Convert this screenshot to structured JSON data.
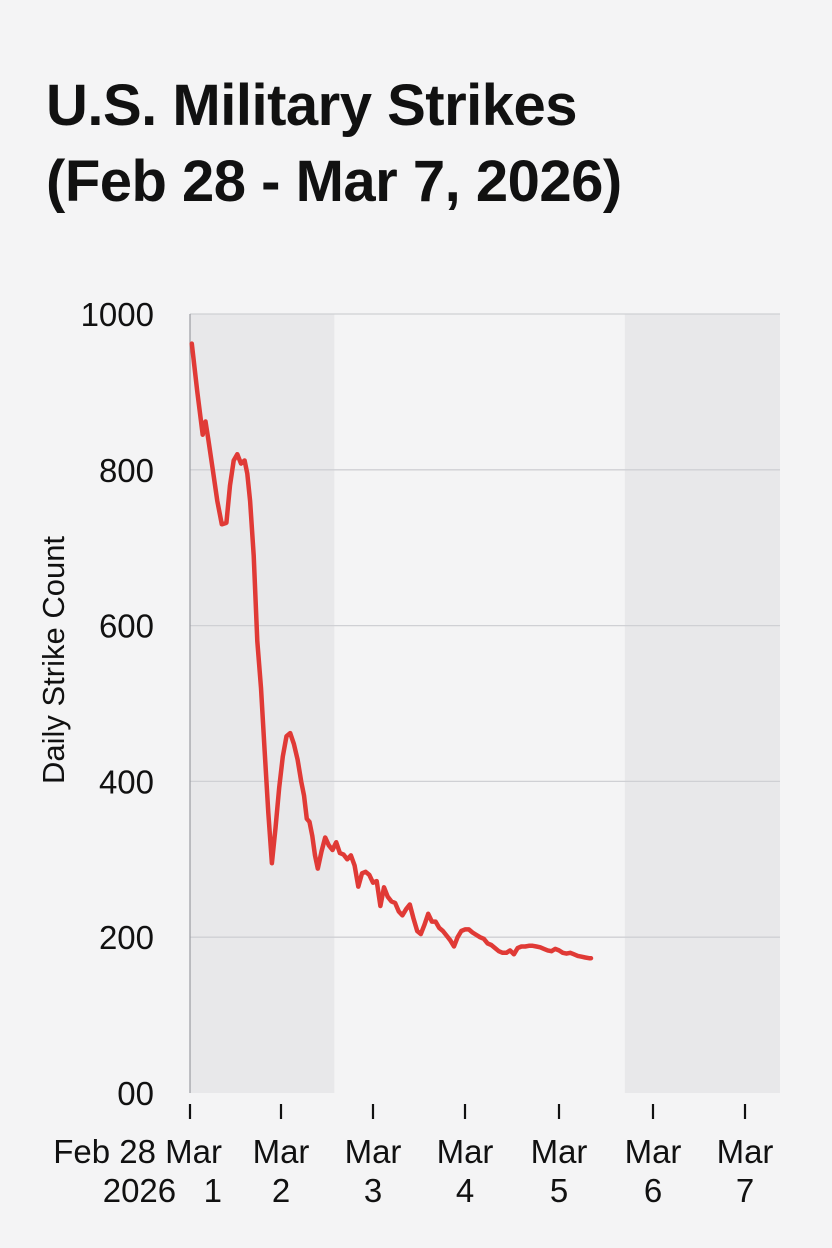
{
  "chart_data": {
    "type": "line",
    "title_lines": [
      "U.S. Military Strikes",
      "(Feb 28 - Mar 7, 2026)"
    ],
    "xlabel": "",
    "ylabel": "Daily Strike Count",
    "ylim": [
      0,
      1000
    ],
    "yticks": [
      {
        "value": 1000,
        "label": "1000"
      },
      {
        "value": 800,
        "label": "800"
      },
      {
        "value": 600,
        "label": "600"
      },
      {
        "value": 400,
        "label": "400"
      },
      {
        "value": 200,
        "label": "200"
      },
      {
        "value": 0,
        "label": "00"
      }
    ],
    "xticks": [
      {
        "day": 0,
        "lines": [
          "Feb 28 Mar",
          "2026   1"
        ]
      },
      {
        "day": 1,
        "lines": [
          "Mar",
          "2"
        ]
      },
      {
        "day": 2,
        "lines": [
          "Mar",
          "3"
        ]
      },
      {
        "day": 3,
        "lines": [
          "Mar",
          "4"
        ]
      },
      {
        "day": 4,
        "lines": [
          "Mar",
          "5"
        ]
      },
      {
        "day": 5,
        "lines": [
          "Mar",
          "6"
        ]
      },
      {
        "day": 6,
        "lines": [
          "Mar",
          "7"
        ]
      }
    ],
    "xlim_days": [
      0,
      6.38
    ],
    "shaded_bands_days": [
      [
        0,
        1.58
      ],
      [
        4.7,
        6.38
      ]
    ],
    "grid": "horizontal",
    "series": [
      {
        "color": "#e03a36",
        "points": [
          [
            0.02,
            962
          ],
          [
            0.08,
            900
          ],
          [
            0.14,
            845
          ],
          [
            0.17,
            862
          ],
          [
            0.2,
            840
          ],
          [
            0.25,
            800
          ],
          [
            0.3,
            760
          ],
          [
            0.35,
            730
          ],
          [
            0.4,
            732
          ],
          [
            0.44,
            780
          ],
          [
            0.48,
            812
          ],
          [
            0.52,
            820
          ],
          [
            0.56,
            808
          ],
          [
            0.6,
            812
          ],
          [
            0.63,
            795
          ],
          [
            0.66,
            760
          ],
          [
            0.7,
            690
          ],
          [
            0.74,
            580
          ],
          [
            0.78,
            520
          ],
          [
            0.82,
            440
          ],
          [
            0.86,
            360
          ],
          [
            0.9,
            295
          ],
          [
            0.94,
            340
          ],
          [
            0.98,
            392
          ],
          [
            1.02,
            432
          ],
          [
            1.06,
            458
          ],
          [
            1.1,
            462
          ],
          [
            1.14,
            448
          ],
          [
            1.18,
            428
          ],
          [
            1.22,
            400
          ],
          [
            1.25,
            382
          ],
          [
            1.28,
            352
          ],
          [
            1.31,
            348
          ],
          [
            1.34,
            330
          ],
          [
            1.37,
            305
          ],
          [
            1.4,
            288
          ],
          [
            1.44,
            310
          ],
          [
            1.48,
            328
          ],
          [
            1.52,
            318
          ],
          [
            1.56,
            312
          ],
          [
            1.6,
            322
          ],
          [
            1.64,
            308
          ],
          [
            1.68,
            306
          ],
          [
            1.72,
            300
          ],
          [
            1.76,
            305
          ],
          [
            1.8,
            292
          ],
          [
            1.84,
            265
          ],
          [
            1.88,
            282
          ],
          [
            1.92,
            284
          ],
          [
            1.96,
            280
          ],
          [
            2.0,
            270
          ],
          [
            2.04,
            272
          ],
          [
            2.08,
            240
          ],
          [
            2.12,
            264
          ],
          [
            2.16,
            252
          ],
          [
            2.2,
            246
          ],
          [
            2.24,
            244
          ],
          [
            2.28,
            233
          ],
          [
            2.32,
            228
          ],
          [
            2.36,
            236
          ],
          [
            2.4,
            242
          ],
          [
            2.44,
            224
          ],
          [
            2.48,
            208
          ],
          [
            2.52,
            204
          ],
          [
            2.56,
            216
          ],
          [
            2.6,
            230
          ],
          [
            2.64,
            220
          ],
          [
            2.68,
            220
          ],
          [
            2.72,
            212
          ],
          [
            2.76,
            208
          ],
          [
            2.8,
            202
          ],
          [
            2.84,
            196
          ],
          [
            2.88,
            188
          ],
          [
            2.92,
            200
          ],
          [
            2.96,
            208
          ],
          [
            3.0,
            210
          ],
          [
            3.04,
            210
          ],
          [
            3.08,
            206
          ],
          [
            3.12,
            203
          ],
          [
            3.16,
            200
          ],
          [
            3.2,
            198
          ],
          [
            3.24,
            192
          ],
          [
            3.28,
            190
          ],
          [
            3.32,
            186
          ],
          [
            3.36,
            182
          ],
          [
            3.4,
            180
          ],
          [
            3.44,
            180
          ],
          [
            3.48,
            183
          ],
          [
            3.52,
            178
          ],
          [
            3.56,
            186
          ],
          [
            3.6,
            188
          ],
          [
            3.64,
            188
          ],
          [
            3.68,
            189
          ],
          [
            3.72,
            189
          ],
          [
            3.76,
            188
          ],
          [
            3.8,
            187
          ],
          [
            3.84,
            185
          ],
          [
            3.88,
            183
          ],
          [
            3.92,
            182
          ],
          [
            3.96,
            185
          ],
          [
            4.0,
            183
          ],
          [
            4.04,
            180
          ],
          [
            4.08,
            179
          ],
          [
            4.12,
            180
          ],
          [
            4.16,
            178
          ],
          [
            4.2,
            176
          ],
          [
            4.24,
            175
          ],
          [
            4.28,
            174
          ],
          [
            4.32,
            173
          ],
          [
            4.34,
            173
          ]
        ]
      }
    ]
  }
}
